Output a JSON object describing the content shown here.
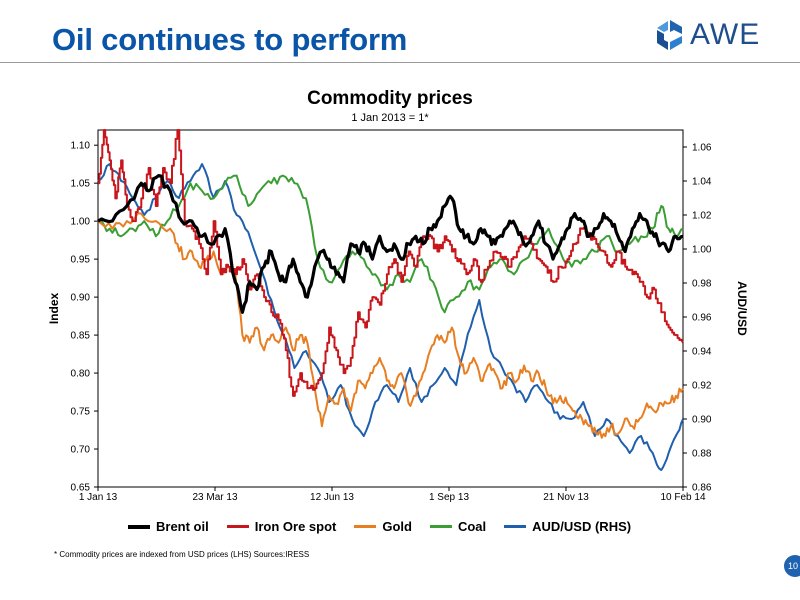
{
  "slide": {
    "title": "Oil continues to perform",
    "logo_text": "AWE",
    "footnote": "* Commodity prices are indexed from USD prices (LHS) Sources:IRESS",
    "page_number": "10"
  },
  "colors": {
    "title": "#0a55a7",
    "brent": "#000000",
    "iron": "#c8161d",
    "gold": "#e87e22",
    "coal": "#3b9e35",
    "aud": "#1f5fae"
  },
  "chart_data": {
    "type": "line",
    "title": "Commodity prices",
    "subtitle": "1 Jan 2013 = 1*",
    "ylabel": "Index",
    "y2label": "AUD/USD",
    "ylim": [
      0.65,
      1.12
    ],
    "y2lim": [
      0.86,
      1.07
    ],
    "yticks": [
      "0.65",
      "0.70",
      "0.75",
      "0.80",
      "0.85",
      "0.90",
      "0.95",
      "1.00",
      "1.05",
      "1.10"
    ],
    "y2ticks": [
      "0.86",
      "0.88",
      "0.90",
      "0.92",
      "0.94",
      "0.96",
      "0.98",
      "1.00",
      "1.02",
      "1.04",
      "1.06"
    ],
    "xticks": [
      "1 Jan 13",
      "23 Mar 13",
      "12 Jun 13",
      "1 Sep 13",
      "21 Nov 13",
      "10 Feb 14"
    ],
    "x_range_days": [
      0,
      405
    ],
    "x_tick_days": [
      0,
      81,
      162,
      243,
      324,
      405
    ],
    "legend": [
      "Brent oil",
      "Iron Ore spot",
      "Gold",
      "Coal",
      "AUD/USD (RHS)"
    ],
    "series": [
      {
        "name": "Brent oil",
        "axis": "left",
        "color": "#000000",
        "width": 3.2,
        "x": [
          0,
          10,
          20,
          30,
          35,
          42,
          50,
          58,
          65,
          72,
          80,
          88,
          95,
          100,
          105,
          110,
          115,
          120,
          125,
          130,
          135,
          140,
          145,
          150,
          155,
          160,
          165,
          170,
          175,
          180,
          185,
          190,
          195,
          200,
          205,
          210,
          215,
          220,
          225,
          230,
          235,
          240,
          245,
          250,
          255,
          260,
          265,
          270,
          275,
          280,
          285,
          290,
          295,
          300,
          305,
          310,
          315,
          320,
          325,
          330,
          335,
          340,
          345,
          350,
          355,
          360,
          365,
          370,
          375,
          380,
          385,
          390,
          395,
          400,
          405
        ],
        "y": [
          1.0,
          1.0,
          1.02,
          1.05,
          1.04,
          1.06,
          1.04,
          1.0,
          1.0,
          0.98,
          0.97,
          0.99,
          0.92,
          0.88,
          0.92,
          0.91,
          0.94,
          0.96,
          0.93,
          0.92,
          0.95,
          0.92,
          0.9,
          0.94,
          0.96,
          0.95,
          0.93,
          0.92,
          0.97,
          0.96,
          0.97,
          0.95,
          0.98,
          0.96,
          0.97,
          0.95,
          0.97,
          0.98,
          0.97,
          0.99,
          1.0,
          1.02,
          1.03,
          0.99,
          0.98,
          0.97,
          0.99,
          0.98,
          0.97,
          0.98,
          1.0,
          0.99,
          0.97,
          0.98,
          1.0,
          0.97,
          0.95,
          0.97,
          0.99,
          1.01,
          1.0,
          0.98,
          0.99,
          1.01,
          1.0,
          0.98,
          0.96,
          0.99,
          1.01,
          1.0,
          0.98,
          0.97,
          0.96,
          0.98,
          0.98
        ]
      },
      {
        "name": "Iron Ore spot",
        "axis": "left",
        "color": "#c8161d",
        "width": 2,
        "x": [
          0,
          4,
          8,
          12,
          16,
          20,
          25,
          30,
          35,
          40,
          45,
          50,
          55,
          60,
          65,
          70,
          75,
          80,
          85,
          90,
          95,
          100,
          105,
          110,
          115,
          120,
          125,
          130,
          135,
          140,
          145,
          150,
          155,
          160,
          165,
          170,
          175,
          180,
          185,
          190,
          195,
          200,
          205,
          210,
          215,
          220,
          225,
          230,
          235,
          240,
          245,
          250,
          255,
          260,
          265,
          270,
          275,
          280,
          285,
          290,
          295,
          300,
          305,
          310,
          315,
          320,
          325,
          330,
          335,
          340,
          345,
          350,
          355,
          360,
          365,
          370,
          375,
          380,
          385,
          390,
          395,
          400,
          405
        ],
        "y": [
          1.05,
          1.12,
          1.08,
          1.03,
          1.08,
          1.02,
          1.0,
          1.03,
          1.07,
          1.02,
          1.07,
          1.05,
          1.12,
          1.0,
          0.99,
          0.97,
          0.93,
          1.0,
          0.93,
          0.94,
          0.93,
          0.95,
          0.91,
          0.93,
          0.9,
          0.88,
          0.87,
          0.83,
          0.77,
          0.8,
          0.78,
          0.78,
          0.8,
          0.86,
          0.83,
          0.8,
          0.82,
          0.88,
          0.86,
          0.9,
          0.89,
          0.93,
          0.95,
          0.92,
          0.96,
          0.94,
          0.98,
          0.98,
          0.96,
          0.98,
          0.96,
          0.95,
          0.93,
          0.95,
          0.92,
          0.94,
          0.96,
          0.95,
          0.94,
          0.96,
          0.98,
          0.97,
          0.95,
          0.94,
          0.92,
          0.94,
          0.95,
          0.97,
          0.99,
          0.98,
          0.97,
          0.96,
          0.94,
          0.96,
          0.94,
          0.93,
          0.92,
          0.9,
          0.91,
          0.88,
          0.86,
          0.85,
          0.84
        ]
      },
      {
        "name": "Gold",
        "axis": "left",
        "color": "#e87e22",
        "width": 2,
        "x": [
          0,
          10,
          20,
          30,
          40,
          50,
          55,
          60,
          65,
          70,
          75,
          80,
          85,
          90,
          95,
          100,
          105,
          110,
          115,
          120,
          125,
          130,
          135,
          140,
          145,
          150,
          155,
          160,
          165,
          170,
          175,
          180,
          185,
          190,
          195,
          200,
          205,
          210,
          215,
          220,
          225,
          230,
          235,
          240,
          245,
          250,
          255,
          260,
          265,
          270,
          275,
          280,
          285,
          290,
          295,
          300,
          305,
          310,
          315,
          320,
          325,
          330,
          335,
          340,
          345,
          350,
          355,
          360,
          365,
          370,
          375,
          380,
          385,
          390,
          395,
          400,
          405
        ],
        "y": [
          1.0,
          0.99,
          1.0,
          1.01,
          1.0,
          0.99,
          0.97,
          0.95,
          0.96,
          0.94,
          0.95,
          0.96,
          0.93,
          0.94,
          0.93,
          0.85,
          0.84,
          0.86,
          0.83,
          0.85,
          0.84,
          0.86,
          0.83,
          0.85,
          0.84,
          0.78,
          0.73,
          0.77,
          0.76,
          0.78,
          0.75,
          0.79,
          0.78,
          0.8,
          0.82,
          0.79,
          0.78,
          0.8,
          0.76,
          0.77,
          0.8,
          0.83,
          0.85,
          0.84,
          0.86,
          0.82,
          0.8,
          0.82,
          0.79,
          0.81,
          0.8,
          0.78,
          0.8,
          0.79,
          0.81,
          0.79,
          0.8,
          0.78,
          0.76,
          0.77,
          0.76,
          0.75,
          0.74,
          0.73,
          0.72,
          0.72,
          0.73,
          0.72,
          0.74,
          0.73,
          0.74,
          0.76,
          0.75,
          0.76,
          0.76,
          0.77,
          0.78
        ]
      },
      {
        "name": "Coal",
        "axis": "left",
        "color": "#3b9e35",
        "width": 2,
        "x": [
          0,
          8,
          16,
          24,
          32,
          40,
          48,
          56,
          64,
          72,
          80,
          88,
          96,
          104,
          112,
          120,
          128,
          136,
          144,
          152,
          160,
          168,
          176,
          184,
          192,
          200,
          208,
          216,
          224,
          232,
          240,
          248,
          256,
          264,
          272,
          280,
          288,
          296,
          304,
          312,
          320,
          328,
          336,
          344,
          352,
          360,
          368,
          376,
          384,
          390,
          395,
          400,
          405
        ],
        "y": [
          1.0,
          0.99,
          0.98,
          0.99,
          1.0,
          0.98,
          1.0,
          1.02,
          1.05,
          1.04,
          1.03,
          1.05,
          1.06,
          1.02,
          1.04,
          1.05,
          1.06,
          1.05,
          1.03,
          0.95,
          0.92,
          0.94,
          0.96,
          0.95,
          0.93,
          0.91,
          0.93,
          0.92,
          0.95,
          0.92,
          0.88,
          0.9,
          0.92,
          0.91,
          0.94,
          0.95,
          0.93,
          0.95,
          0.97,
          0.99,
          0.96,
          0.94,
          0.95,
          0.96,
          0.98,
          0.96,
          0.97,
          0.98,
          0.99,
          1.02,
          0.99,
          0.98,
          0.99
        ]
      },
      {
        "name": "AUD/USD (RHS)",
        "axis": "right",
        "color": "#1f5fae",
        "width": 2,
        "x": [
          0,
          8,
          16,
          24,
          32,
          40,
          48,
          56,
          64,
          72,
          80,
          88,
          96,
          104,
          112,
          120,
          128,
          136,
          144,
          152,
          160,
          168,
          176,
          184,
          192,
          200,
          208,
          216,
          224,
          232,
          240,
          248,
          256,
          264,
          272,
          280,
          288,
          296,
          304,
          312,
          320,
          328,
          336,
          344,
          352,
          360,
          368,
          376,
          384,
          390,
          395,
          400,
          405
        ],
        "y": [
          1.04,
          1.05,
          1.04,
          1.03,
          1.02,
          1.03,
          1.04,
          1.03,
          1.04,
          1.05,
          1.03,
          1.04,
          1.02,
          1.01,
          0.99,
          0.97,
          0.95,
          0.93,
          0.94,
          0.93,
          0.91,
          0.92,
          0.9,
          0.89,
          0.91,
          0.92,
          0.91,
          0.93,
          0.91,
          0.92,
          0.93,
          0.92,
          0.95,
          0.97,
          0.94,
          0.93,
          0.92,
          0.91,
          0.92,
          0.91,
          0.9,
          0.9,
          0.91,
          0.89,
          0.9,
          0.89,
          0.88,
          0.89,
          0.88,
          0.87,
          0.88,
          0.89,
          0.9
        ]
      }
    ]
  }
}
